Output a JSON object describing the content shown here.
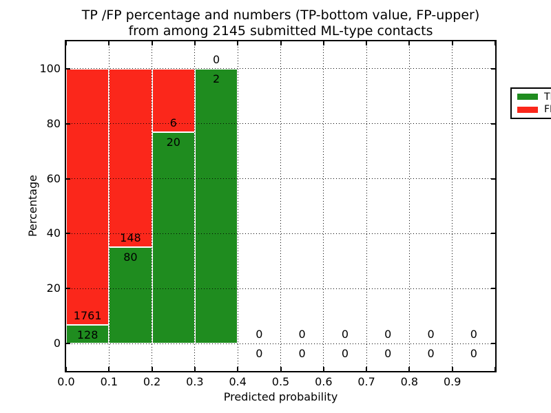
{
  "chart_data": {
    "type": "bar",
    "stacked": true,
    "title": "TP /FP percentage and numbers (TP-bottom value, FP-upper)",
    "subtitle": "from among 2145 submitted ML-type contacts",
    "total_contacts": 2145,
    "xlabel": "Predicted probability",
    "ylabel": "Percentage",
    "xlim": [
      0,
      1
    ],
    "ylim": [
      -10,
      110
    ],
    "x_ticks": [
      "0.0",
      "0.1",
      "0.2",
      "0.3",
      "0.4",
      "0.5",
      "0.6",
      "0.7",
      "0.8",
      "0.9"
    ],
    "y_ticks": [
      0,
      20,
      40,
      60,
      80,
      100
    ],
    "grid": true,
    "legend_position": "upper right",
    "legend": {
      "entries": [
        {
          "label": "TP",
          "color": "#1f8c1f"
        },
        {
          "label": "FP",
          "color": "#fb271b"
        }
      ]
    },
    "bins": [
      {
        "x_start": 0.0,
        "x_end": 0.1,
        "tp": 128,
        "fp": 1761
      },
      {
        "x_start": 0.1,
        "x_end": 0.2,
        "tp": 80,
        "fp": 148
      },
      {
        "x_start": 0.2,
        "x_end": 0.3,
        "tp": 20,
        "fp": 6
      },
      {
        "x_start": 0.3,
        "x_end": 0.4,
        "tp": 2,
        "fp": 0
      },
      {
        "x_start": 0.4,
        "x_end": 0.5,
        "tp": 0,
        "fp": 0
      },
      {
        "x_start": 0.5,
        "x_end": 0.6,
        "tp": 0,
        "fp": 0
      },
      {
        "x_start": 0.6,
        "x_end": 0.7,
        "tp": 0,
        "fp": 0
      },
      {
        "x_start": 0.7,
        "x_end": 0.8,
        "tp": 0,
        "fp": 0
      },
      {
        "x_start": 0.8,
        "x_end": 0.9,
        "tp": 0,
        "fp": 0
      },
      {
        "x_start": 0.9,
        "x_end": 1.0,
        "tp": 0,
        "fp": 0
      }
    ],
    "colors": {
      "tp": "#1f8c1f",
      "fp": "#fb271b",
      "grid": "#000000",
      "frame": "#000000",
      "background": "#ffffff"
    }
  }
}
